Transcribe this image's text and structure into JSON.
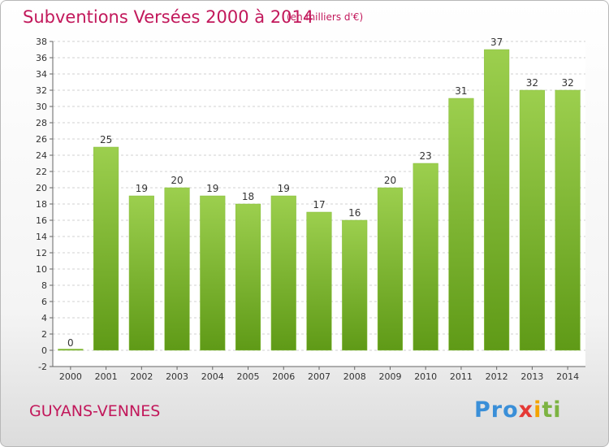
{
  "header": {
    "title": "Subventions Versées 2000 à 2014",
    "subtitle": "(en milliers d'€)"
  },
  "footer": {
    "commune": "GUYANS-VENNES",
    "logo_text": "Proxiti"
  },
  "colors": {
    "bar_top": "#9ccf4e",
    "bar_bottom": "#5f9a17",
    "title": "#c2185b",
    "grid": "#d0d0d0"
  },
  "chart_data": {
    "type": "bar",
    "title": "Subventions Versées 2000 à 2014",
    "subtitle": "(en milliers d'€)",
    "xlabel": "",
    "ylabel": "",
    "categories": [
      "2000",
      "2001",
      "2002",
      "2003",
      "2004",
      "2005",
      "2006",
      "2007",
      "2008",
      "2009",
      "2010",
      "2011",
      "2012",
      "2013",
      "2014"
    ],
    "values": [
      0,
      25,
      19,
      20,
      19,
      18,
      19,
      17,
      16,
      20,
      23,
      31,
      37,
      32,
      32
    ],
    "ylim": [
      -2,
      38
    ],
    "yticks": [
      -2,
      0,
      2,
      4,
      6,
      8,
      10,
      12,
      14,
      16,
      18,
      20,
      22,
      24,
      26,
      28,
      30,
      32,
      34,
      36,
      38
    ],
    "grid": true,
    "legend": "none"
  }
}
